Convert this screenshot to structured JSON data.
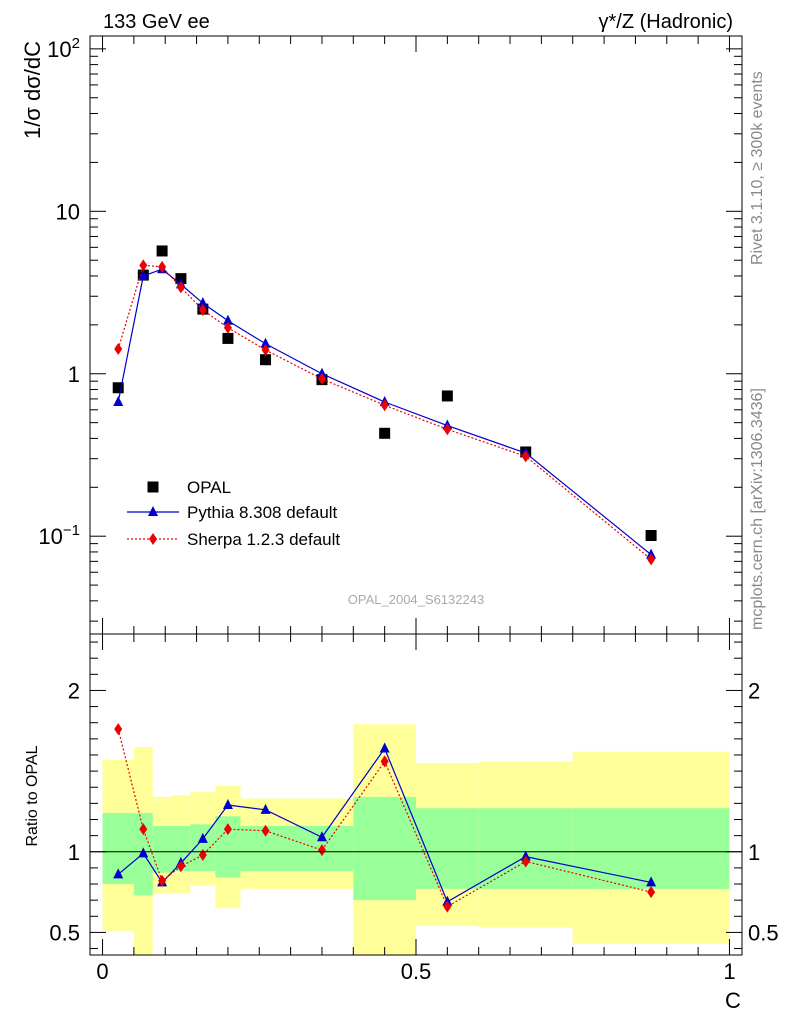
{
  "header": {
    "left": "133 GeV ee",
    "right": "γ*/Z (Hadronic)"
  },
  "side_labels": {
    "top": "Rivet 3.1.10, ≥ 300k events",
    "bottom": "mcplots.cern.ch [arXiv:1306.3436]"
  },
  "watermark": "OPAL_2004_S6132243",
  "chart_data": [
    {
      "type": "scatter",
      "name": "main",
      "ylabel": "1/σ dσ/dC",
      "yscale": "log",
      "ylim": [
        0.025,
        120
      ],
      "xlim": [
        -0.02,
        1.02
      ],
      "y_ticks": [
        {
          "value": 0.1,
          "base": "10",
          "exp": "−1"
        },
        {
          "value": 1,
          "label": "1"
        },
        {
          "value": 10,
          "label": "10"
        },
        {
          "value": 100,
          "base": "10",
          "exp": "2"
        }
      ],
      "legend": {
        "placement": "bottom-left"
      },
      "series": [
        {
          "name": "OPAL",
          "style": "square",
          "color": "#000000",
          "x": [
            0.025,
            0.065,
            0.095,
            0.125,
            0.16,
            0.2,
            0.26,
            0.35,
            0.45,
            0.55,
            0.675,
            0.875
          ],
          "y": [
            0.82,
            4.05,
            5.7,
            3.85,
            2.5,
            1.65,
            1.22,
            0.92,
            0.43,
            0.73,
            0.33,
            0.101
          ]
        },
        {
          "name": "Pythia 8.308 default",
          "style": "triangle",
          "color": "#0000cc",
          "line": "solid",
          "x": [
            0.025,
            0.065,
            0.095,
            0.125,
            0.16,
            0.2,
            0.26,
            0.35,
            0.45,
            0.55,
            0.675,
            0.875
          ],
          "y": [
            0.67,
            4.0,
            4.4,
            3.55,
            2.72,
            2.12,
            1.53,
            1.0,
            0.67,
            0.48,
            0.325,
            0.077
          ]
        },
        {
          "name": "Sherpa 1.2.3 default",
          "style": "diamond",
          "color": "#ee0000",
          "line": "dotted",
          "x": [
            0.025,
            0.065,
            0.095,
            0.125,
            0.16,
            0.2,
            0.26,
            0.35,
            0.45,
            0.55,
            0.675,
            0.875
          ],
          "y": [
            1.42,
            4.65,
            4.55,
            3.4,
            2.47,
            1.92,
            1.4,
            0.93,
            0.64,
            0.455,
            0.31,
            0.072
          ]
        }
      ]
    },
    {
      "type": "line",
      "name": "ratio",
      "ylabel": "Ratio to OPAL",
      "xlabel": "C",
      "ylim": [
        0.36,
        2.35
      ],
      "xlim": [
        -0.02,
        1.02
      ],
      "x_ticks": [
        0,
        0.5,
        1
      ],
      "x_tick_labels": [
        "0",
        "0.5",
        "1"
      ],
      "y_ticks": [
        0.5,
        1,
        2
      ],
      "y_tick_labels": [
        "0.5",
        "1",
        "2"
      ],
      "reference": 1,
      "bands": [
        {
          "x0": 0.0,
          "x1": 0.08,
          "y1lo": 0.8,
          "y1hi": 1.24,
          "y2lo": 0.51,
          "y2hi": 1.57
        },
        {
          "x0": 0.08,
          "x1": 0.11,
          "y1lo": 0.87,
          "y1hi": 1.16,
          "y2lo": 0.74,
          "y2hi": 1.34
        },
        {
          "x0": 0.11,
          "x1": 0.14,
          "y1lo": 0.88,
          "y1hi": 1.16,
          "y2lo": 0.74,
          "y2hi": 1.35
        },
        {
          "x0": 0.14,
          "x1": 0.18,
          "y1lo": 0.88,
          "y1hi": 1.17,
          "y2lo": 0.79,
          "y2hi": 1.37
        },
        {
          "x0": 0.18,
          "x1": 0.22,
          "y1lo": 0.84,
          "y1hi": 1.22,
          "y2lo": 0.65,
          "y2hi": 1.41
        },
        {
          "x0": 0.22,
          "x1": 0.4,
          "y1lo": 0.88,
          "y1hi": 1.16,
          "y2lo": 0.77,
          "y2hi": 1.33
        },
        {
          "x0": 0.4,
          "x1": 0.5,
          "y1lo": 0.7,
          "y1hi": 1.34,
          "y2lo": 0.36,
          "y2hi": 1.79
        },
        {
          "x0": 0.5,
          "x1": 0.6,
          "y1lo": 0.77,
          "y1hi": 1.27,
          "y2lo": 0.54,
          "y2hi": 1.55
        },
        {
          "x0": 0.6,
          "x1": 0.75,
          "y1lo": 0.77,
          "y1hi": 1.27,
          "y2lo": 0.53,
          "y2hi": 1.56
        },
        {
          "x0": 0.75,
          "x1": 1.0,
          "y1lo": 0.77,
          "y1hi": 1.27,
          "y2lo": 0.43,
          "y2hi": 1.62
        }
      ],
      "band_exceptions": [
        {
          "x0": 0.05,
          "x1": 0.08,
          "y1lo": 0.73,
          "y1hi": 1.24,
          "y2lo": 0.36,
          "y2hi": 1.65
        }
      ],
      "series": [
        {
          "name": "Pythia 8.308 default",
          "style": "triangle",
          "color": "#0000cc",
          "line": "solid",
          "x": [
            0.025,
            0.065,
            0.095,
            0.125,
            0.16,
            0.2,
            0.26,
            0.35,
            0.45,
            0.55,
            0.675,
            0.875
          ],
          "y": [
            0.86,
            0.99,
            0.81,
            0.93,
            1.08,
            1.29,
            1.26,
            1.09,
            1.64,
            0.69,
            0.97,
            0.81
          ]
        },
        {
          "name": "Sherpa 1.2.3 default",
          "style": "diamond",
          "color": "#ee0000",
          "line": "dotted",
          "x": [
            0.025,
            0.065,
            0.095,
            0.125,
            0.16,
            0.2,
            0.26,
            0.35,
            0.45,
            0.55,
            0.675,
            0.875
          ],
          "y": [
            1.76,
            1.14,
            0.82,
            0.91,
            0.98,
            1.14,
            1.13,
            1.01,
            1.56,
            0.66,
            0.94,
            0.75
          ]
        }
      ]
    }
  ]
}
